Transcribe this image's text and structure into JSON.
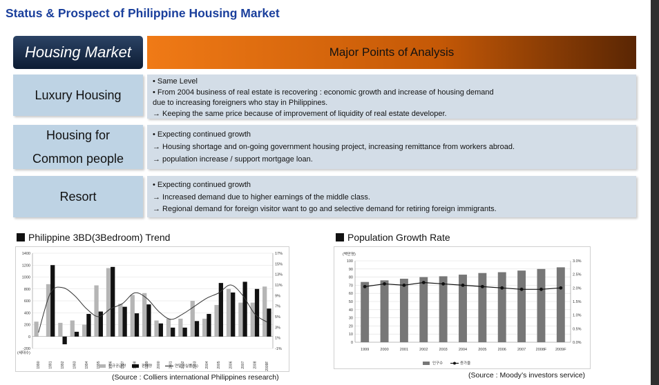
{
  "page": {
    "title": "Status & Prospect of Philippine Housing Market"
  },
  "header": {
    "left_label": "Housing Market",
    "right_label": "Major Points of Analysis"
  },
  "rows": [
    {
      "label": "Luxury Housing",
      "lines": [
        "• Same Level",
        "• From 2004 business of real estate is recovering : economic growth and  increase of housing demand",
        "   due to increasing foreigners who stay in Philippines.",
        "   → Keeping the same price because of improvement of liquidity of real estate developer."
      ]
    },
    {
      "label_lines": [
        "Housing for",
        "Common people"
      ],
      "lines": [
        "•  Expecting continued growth",
        "  → Housing shortage and on-going government housing project, increasing remittance from workers abroad.",
        "  → population increase / support mortgage loan."
      ]
    },
    {
      "label": "Resort",
      "lines": [
        "• Expecting continued growth",
        "  → Increased demand due to higher earnings of the middle class.",
        "  → Regional demand for foreign visitor want to go and selective demand for retiring foreign immigrants."
      ]
    }
  ],
  "colors": {
    "title_blue": "#1a3f9c",
    "header_orange": "#e0690f",
    "header_navy": "#142844",
    "label_blue": "#bed3e4",
    "body_blue": "#d3dde7",
    "bar_gray": "#b5b5b5",
    "bar_black": "#111111",
    "line_dark": "#333333"
  },
  "chart_data": [
    {
      "type": "bar",
      "title": "Philippine 3BD(3Bedroom) Trend",
      "source": "(Source : Colliers international Philippines research)",
      "y_unit_label": "(세대수)",
      "categories": [
        "1990",
        "1991",
        "1992",
        "1993",
        "1994",
        "1995",
        "1996",
        "1997",
        "1998",
        "1999",
        "2000",
        "2001",
        "2002",
        "2003",
        "2004",
        "2005",
        "2006",
        "2007",
        "2008",
        "2009F"
      ],
      "ylim": [
        -200,
        1400
      ],
      "y_ticks": [
        -200,
        0,
        200,
        400,
        600,
        800,
        1000,
        1200,
        1400
      ],
      "y2lim": [
        -1,
        17
      ],
      "y2_ticks": [
        "-1%",
        "1%",
        "3%",
        "5%",
        "7%",
        "9%",
        "11%",
        "13%",
        "15%",
        "17%"
      ],
      "series": [
        {
          "name": "신규공급량",
          "type": "bar",
          "color": "#b5b5b5",
          "values": [
            250,
            880,
            230,
            270,
            200,
            860,
            1150,
            550,
            700,
            730,
            270,
            300,
            300,
            600,
            300,
            530,
            800,
            570,
            570,
            840
          ]
        },
        {
          "name": "판매량",
          "type": "bar",
          "color": "#111111",
          "values": [
            null,
            1200,
            -130,
            80,
            380,
            420,
            1170,
            500,
            390,
            540,
            220,
            150,
            150,
            260,
            380,
            900,
            740,
            920,
            800,
            470
          ]
        },
        {
          "name": "연말공실률(%)",
          "type": "line",
          "axis": "right",
          "color": "#333333",
          "values": [
            2.0,
            9.5,
            10.5,
            9.0,
            6.5,
            5.0,
            6.5,
            7.5,
            9.5,
            8.5,
            6.0,
            4.5,
            5.5,
            7.0,
            8.5,
            9.5,
            11.0,
            9.0,
            5.5,
            4.0
          ]
        }
      ]
    },
    {
      "type": "bar",
      "title": "Population Growth Rate",
      "source": "(Source : Moody’s investors service)",
      "y_unit_label": "(백만명)",
      "categories": [
        "1999",
        "2000",
        "2001",
        "2002",
        "2003",
        "2004",
        "2005",
        "2006",
        "2007",
        "2008F",
        "2009F"
      ],
      "ylim": [
        0,
        100
      ],
      "y_ticks": [
        0,
        10,
        20,
        30,
        40,
        50,
        60,
        70,
        80,
        90,
        100
      ],
      "y2lim": [
        0,
        3.0
      ],
      "y2_ticks": [
        "0.0%",
        "0.5%",
        "1.0%",
        "1.5%",
        "2.0%",
        "2.5%",
        "3.0%"
      ],
      "series": [
        {
          "name": "인구수",
          "type": "bar",
          "color": "#777777",
          "values": [
            74,
            76,
            78,
            80,
            81,
            83,
            85,
            86,
            88,
            90,
            92
          ]
        },
        {
          "name": "증가율",
          "type": "line",
          "axis": "right",
          "color": "#111111",
          "values": [
            2.05,
            2.15,
            2.1,
            2.2,
            2.15,
            2.1,
            2.05,
            2.0,
            1.95,
            1.95,
            2.0
          ]
        }
      ]
    }
  ]
}
